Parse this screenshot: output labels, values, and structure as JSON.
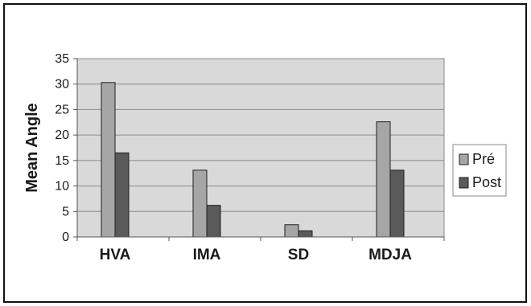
{
  "chart_data": {
    "type": "bar",
    "categories": [
      "HVA",
      "IMA",
      "SD",
      "MDJA"
    ],
    "series": [
      {
        "name": "Pré",
        "values": [
          30.3,
          13.1,
          2.4,
          22.6
        ],
        "color": "#a6a6a6"
      },
      {
        "name": "Post",
        "values": [
          16.5,
          6.2,
          1.2,
          13.1
        ],
        "color": "#5a5a5a"
      }
    ],
    "title": "",
    "xlabel": "",
    "ylabel": "Mean Angle",
    "ylim": [
      0,
      35
    ],
    "yticks": [
      0,
      5,
      10,
      15,
      20,
      25,
      30,
      35
    ],
    "grid": true,
    "plot_background": "#d9d9d9",
    "legend_position": "right"
  }
}
